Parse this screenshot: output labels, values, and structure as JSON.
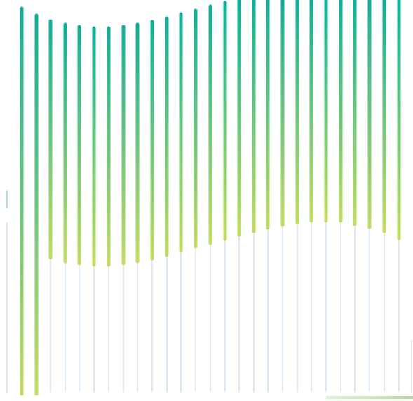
{
  "graphic": {
    "kind": "decorative vertical gradient bars",
    "bar_count": 27,
    "colors": {
      "teal": "#0fae98",
      "lime": "#c3dc62",
      "track": "#dbeaf4",
      "accent_line": "#c6e1b4"
    }
  }
}
